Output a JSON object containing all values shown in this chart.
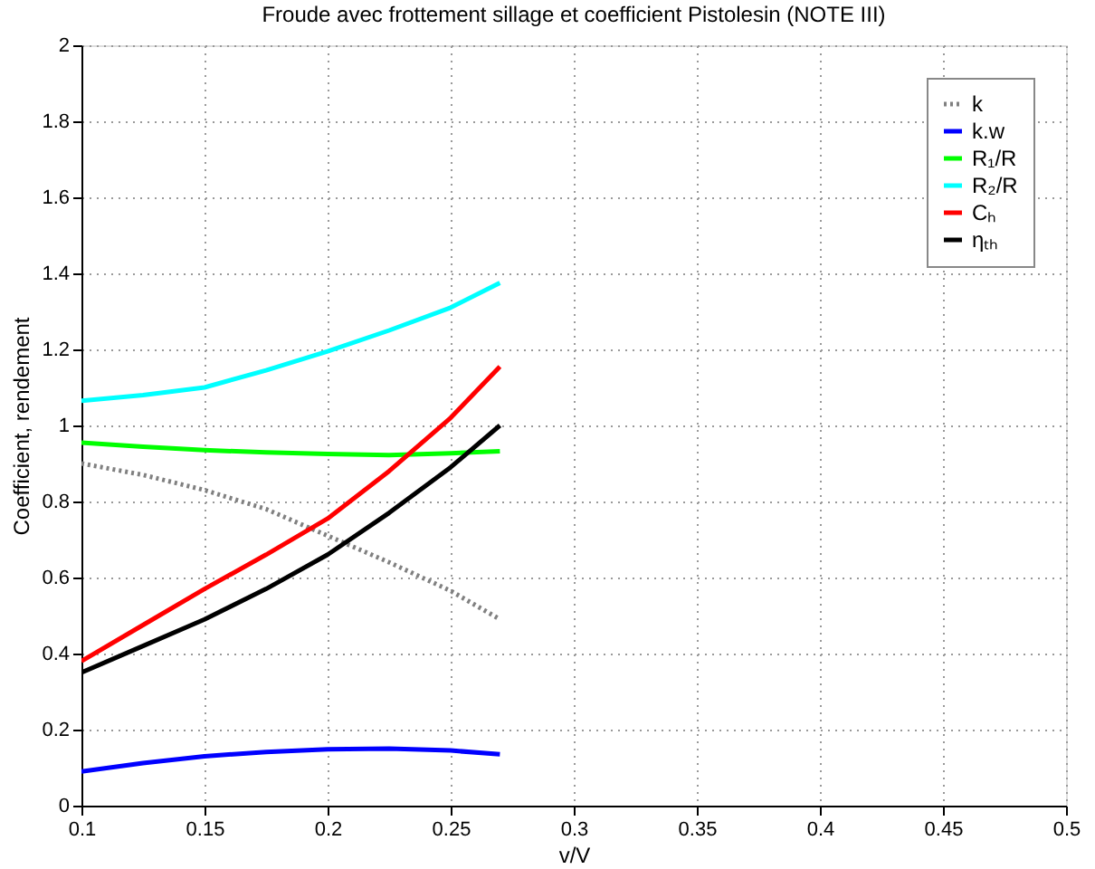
{
  "chart_data": {
    "type": "line",
    "title": "Froude avec frottement sillage et coefficient Pistolesin (NOTE III)",
    "xlabel": "v/V",
    "ylabel": "Coefficient, rendement",
    "x": [
      0.1,
      0.125,
      0.15,
      0.175,
      0.2,
      0.225,
      0.25,
      0.27
    ],
    "series": [
      {
        "name": "k",
        "color": "#808080",
        "line_style": "dotted",
        "values": [
          0.9,
          0.87,
          0.83,
          0.78,
          0.71,
          0.64,
          0.565,
          0.49
        ]
      },
      {
        "name": "k.w",
        "color": "#0000ff",
        "values": [
          0.09,
          0.112,
          0.13,
          0.141,
          0.148,
          0.15,
          0.145,
          0.135
        ]
      },
      {
        "name": "R₁/R",
        "color": "#00ff00",
        "values": [
          0.955,
          0.944,
          0.935,
          0.929,
          0.925,
          0.922,
          0.927,
          0.932
        ]
      },
      {
        "name": "R₂/R",
        "color": "#00ffff",
        "values": [
          1.065,
          1.08,
          1.1,
          1.145,
          1.195,
          1.25,
          1.31,
          1.375
        ]
      },
      {
        "name": "Cₕ",
        "color": "#ff0000",
        "values": [
          0.38,
          0.475,
          0.57,
          0.66,
          0.755,
          0.88,
          1.02,
          1.155
        ]
      },
      {
        "name": "ηₜₕ",
        "color": "#000000",
        "values": [
          0.35,
          0.42,
          0.49,
          0.57,
          0.66,
          0.77,
          0.89,
          1.0
        ]
      }
    ],
    "xlim": [
      0.1,
      0.5
    ],
    "xticks": [
      0.1,
      0.15,
      0.2,
      0.25,
      0.3,
      0.35,
      0.4,
      0.45,
      0.5
    ],
    "ylim": [
      0,
      2
    ],
    "yticks": [
      0,
      0.2,
      0.4,
      0.6,
      0.8,
      1,
      1.2,
      1.4,
      1.6,
      1.8,
      2
    ],
    "grid": true,
    "legend": "top right",
    "marker": "none",
    "line_style": "solid"
  }
}
